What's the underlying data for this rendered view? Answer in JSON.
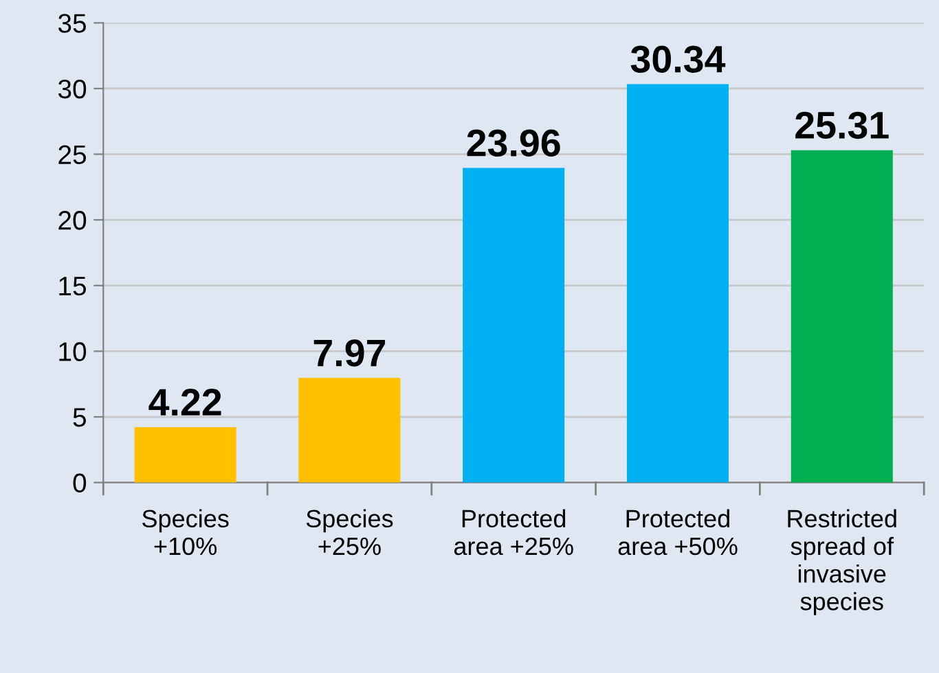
{
  "chart_data": {
    "type": "bar",
    "categories": [
      "Species\n+10%",
      "Species\n+25%",
      "Protected\narea +25%",
      "Protected\narea +50%",
      "Restricted\nspread of\ninvasive\nspecies"
    ],
    "values": [
      4.22,
      7.97,
      23.96,
      30.34,
      25.31
    ],
    "colors": [
      "#ffc000",
      "#ffc000",
      "#00b0f0",
      "#00b0f0",
      "#00b050"
    ],
    "ylim": [
      0,
      35
    ],
    "yticks": [
      0,
      5,
      10,
      15,
      20,
      25,
      30,
      35
    ],
    "grid": "y",
    "data_labels": true,
    "legend": false
  }
}
